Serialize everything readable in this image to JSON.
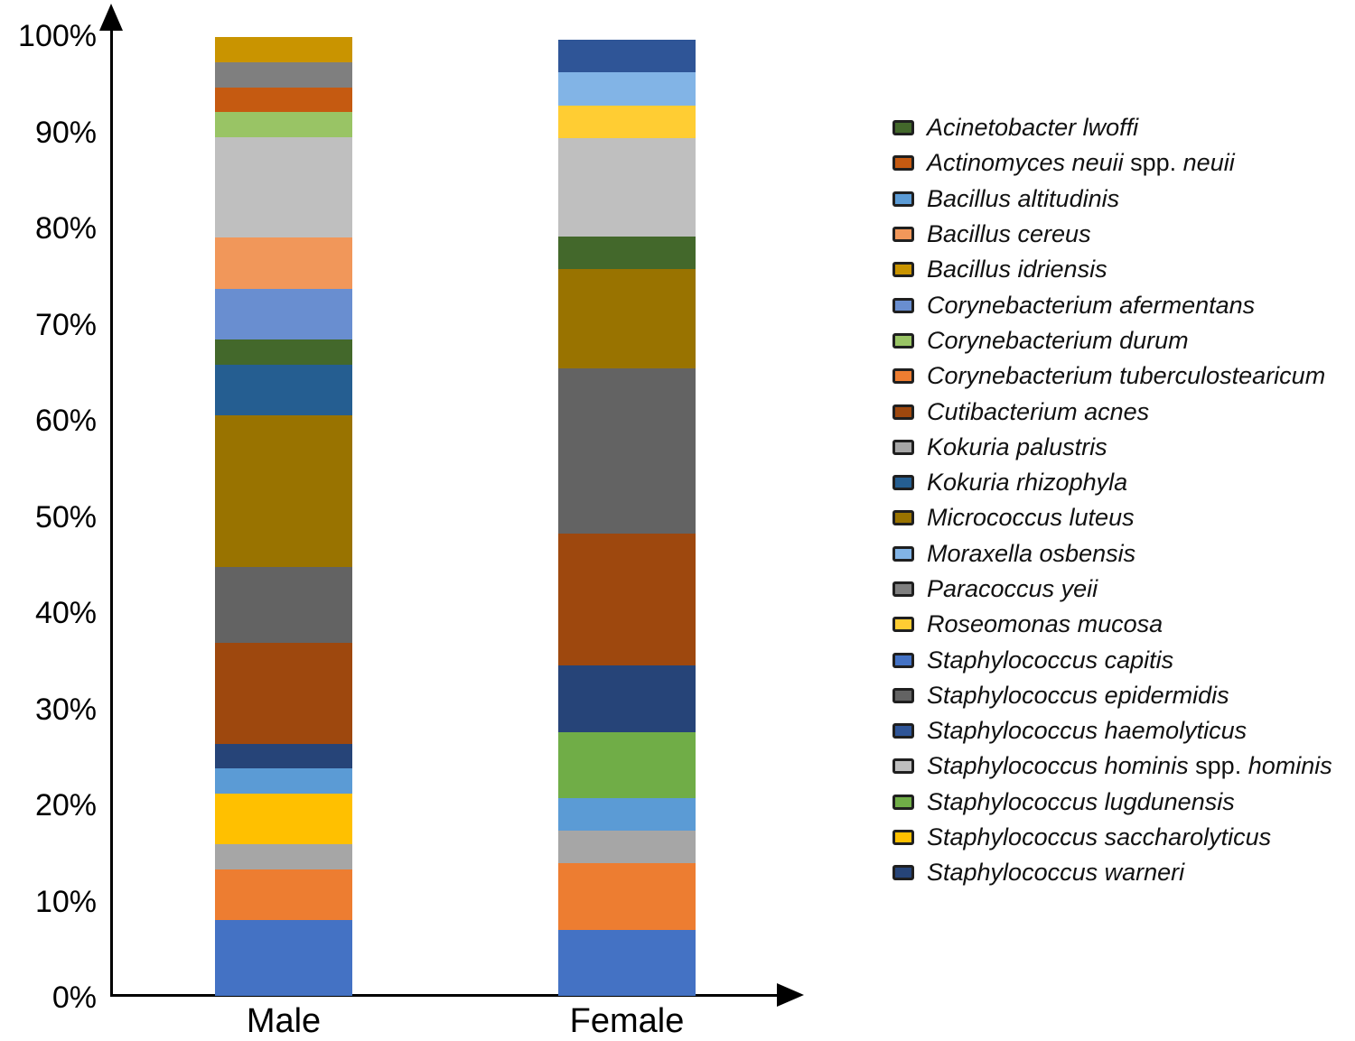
{
  "chart_data": {
    "type": "bar",
    "stacked": true,
    "orientation": "vertical",
    "title": "",
    "categories": [
      "Male",
      "Female"
    ],
    "y_axis": {
      "min": 0,
      "max": 100,
      "unit": "percent",
      "ticks": [
        "0%",
        "10%",
        "20%",
        "30%",
        "40%",
        "50%",
        "60%",
        "70%",
        "80%",
        "90%",
        "100%"
      ]
    },
    "grid": false,
    "legend_position": "right",
    "series_note": "series listed in stacking order, bottom of bar first; values are percent of isolates per sex",
    "series": [
      {
        "name": "Staphylococcus capitis",
        "color": "#4472C4",
        "values": [
          7.9,
          6.9
        ]
      },
      {
        "name": "Corynebacterium tuberculostearicum",
        "color": "#ED7D31",
        "values": [
          5.3,
          6.9
        ]
      },
      {
        "name": "Kokuria palustris",
        "color": "#A6A6A6",
        "values": [
          2.6,
          3.4
        ]
      },
      {
        "name": "Staphylococcus saccharolyticus",
        "color": "#FFC000",
        "values": [
          5.3,
          0
        ]
      },
      {
        "name": "Bacillus altitudinis",
        "color": "#5B9BD5",
        "values": [
          2.6,
          3.4
        ]
      },
      {
        "name": "Staphylococcus lugdunensis",
        "color": "#70AD47",
        "values": [
          0,
          6.9
        ]
      },
      {
        "name": "Staphylococcus warneri",
        "color": "#264478",
        "values": [
          2.6,
          6.9
        ]
      },
      {
        "name": "Cutibacterium acnes",
        "color": "#9E480E",
        "values": [
          10.5,
          13.8
        ]
      },
      {
        "name": "Staphylococcus epidermidis",
        "color": "#636363",
        "values": [
          7.9,
          17.2
        ]
      },
      {
        "name": "Micrococcus luteus",
        "color": "#997300",
        "values": [
          15.8,
          10.3
        ]
      },
      {
        "name": "Kokuria rhizophyla",
        "color": "#255E91",
        "values": [
          5.3,
          0
        ]
      },
      {
        "name": "Acinetobacter lwoffi",
        "color": "#43682B",
        "values": [
          2.6,
          3.4
        ]
      },
      {
        "name": "Corynebacterium afermentans",
        "color": "#698ED0",
        "values": [
          5.3,
          0
        ]
      },
      {
        "name": "Bacillus cereus",
        "color": "#F1975A",
        "values": [
          5.3,
          0
        ]
      },
      {
        "name": "Staphylococcus hominis spp. hominis",
        "color": "#BFBFBF",
        "values": [
          10.5,
          10.3
        ]
      },
      {
        "name": "Corynebacterium durum",
        "color": "#99C465",
        "values": [
          2.6,
          0
        ]
      },
      {
        "name": "Actinomyces neuii spp. neuii",
        "color": "#C55A11",
        "values": [
          2.6,
          0
        ]
      },
      {
        "name": "Paracoccus yeii",
        "color": "#7F7F7F",
        "values": [
          2.6,
          0
        ]
      },
      {
        "name": "Bacillus idriensis",
        "color": "#C99400",
        "values": [
          2.6,
          0
        ]
      },
      {
        "name": "Roseomonas mucosa",
        "color": "#FFCD33",
        "values": [
          0,
          3.4
        ]
      },
      {
        "name": "Moraxella osbensis",
        "color": "#82B4E6",
        "values": [
          0,
          3.4
        ]
      },
      {
        "name": "Staphylococcus haemolyticus",
        "color": "#2F5597",
        "values": [
          0,
          3.4
        ]
      }
    ],
    "legend": [
      {
        "parts": [
          [
            "i",
            "Acinetobacter lwoffi"
          ]
        ]
      },
      {
        "parts": [
          [
            "i",
            "Actinomyces neuii"
          ],
          [
            "n",
            " spp. "
          ],
          [
            "i",
            "neuii"
          ]
        ]
      },
      {
        "parts": [
          [
            "i",
            "Bacillus altitudinis"
          ]
        ]
      },
      {
        "parts": [
          [
            "i",
            "Bacillus cereus"
          ]
        ]
      },
      {
        "parts": [
          [
            "i",
            "Bacillus idriensis"
          ]
        ]
      },
      {
        "parts": [
          [
            "i",
            "Corynebacterium afermentans"
          ]
        ]
      },
      {
        "parts": [
          [
            "i",
            "Corynebacterium durum"
          ]
        ]
      },
      {
        "parts": [
          [
            "i",
            "Corynebacterium tuberculostearicum"
          ]
        ]
      },
      {
        "parts": [
          [
            "i",
            "Cutibacterium acnes"
          ]
        ]
      },
      {
        "parts": [
          [
            "i",
            "Kokuria palustris"
          ]
        ]
      },
      {
        "parts": [
          [
            "i",
            "Kokuria rhizophyla"
          ]
        ]
      },
      {
        "parts": [
          [
            "i",
            "Micrococcus luteus"
          ]
        ]
      },
      {
        "parts": [
          [
            "i",
            "Moraxella osbensis"
          ]
        ]
      },
      {
        "parts": [
          [
            "i",
            "Paracoccus yeii"
          ]
        ]
      },
      {
        "parts": [
          [
            "i",
            "Roseomonas mucosa"
          ]
        ]
      },
      {
        "parts": [
          [
            "i",
            "Staphylococcus capitis"
          ]
        ]
      },
      {
        "parts": [
          [
            "i",
            "Staphylococcus epidermidis"
          ]
        ]
      },
      {
        "parts": [
          [
            "i",
            "Staphylococcus haemolyticus"
          ]
        ]
      },
      {
        "parts": [
          [
            "i",
            "Staphylococcus hominis"
          ],
          [
            "n",
            " spp. "
          ],
          [
            "i",
            "hominis"
          ]
        ]
      },
      {
        "parts": [
          [
            "i",
            "Staphylococcus lugdunensis"
          ]
        ]
      },
      {
        "parts": [
          [
            "i",
            "Staphylococcus saccharolyticus"
          ]
        ]
      },
      {
        "parts": [
          [
            "i",
            "Staphylococcus warneri"
          ]
        ]
      }
    ]
  }
}
